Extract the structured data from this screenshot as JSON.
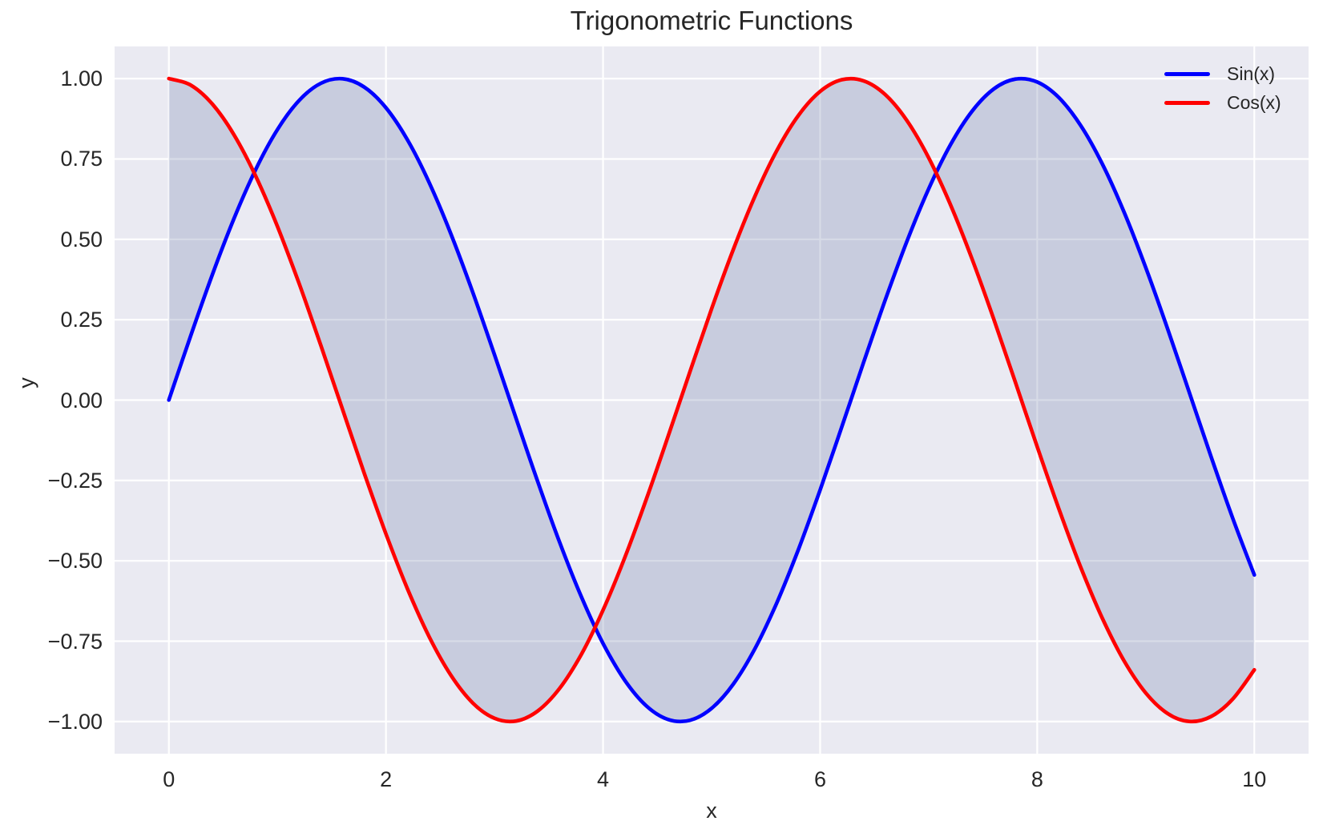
{
  "title": "Trigonometric Functions",
  "xlabel": "x",
  "ylabel": "y",
  "style": {
    "background": "#ffffff",
    "axes_background": "#eaeaf2",
    "grid_color": "#ffffff",
    "text_color": "#262626"
  },
  "legend": {
    "position": "upper right",
    "items": [
      {
        "label": "Sin(x)",
        "color": "#0000ff"
      },
      {
        "label": "Cos(x)",
        "color": "#ff0000"
      }
    ]
  },
  "chart_data": {
    "type": "line",
    "title": "Trigonometric Functions",
    "xlabel": "x",
    "ylabel": "y",
    "xlim": [
      -0.5,
      10.5
    ],
    "ylim": [
      -1.1,
      1.1
    ],
    "grid": true,
    "legend_position": "upper right",
    "xticks": {
      "values": [
        0,
        2,
        4,
        6,
        8,
        10
      ],
      "labels": [
        "0",
        "2",
        "4",
        "6",
        "8",
        "10"
      ]
    },
    "yticks": {
      "values": [
        -1.0,
        -0.75,
        -0.5,
        -0.25,
        0.0,
        0.25,
        0.5,
        0.75,
        1.0
      ],
      "labels": [
        "−1.00",
        "−0.75",
        "−0.50",
        "−0.25",
        "0.00",
        "0.25",
        "0.50",
        "0.75",
        "1.00"
      ]
    },
    "x": [
      0.0,
      0.2,
      0.4,
      0.6,
      0.8,
      1.0,
      1.2,
      1.4,
      1.6,
      1.8,
      2.0,
      2.2,
      2.4,
      2.6,
      2.8,
      3.0,
      3.2,
      3.4,
      3.6,
      3.8,
      4.0,
      4.2,
      4.4,
      4.6,
      4.8,
      5.0,
      5.2,
      5.4,
      5.6,
      5.8,
      6.0,
      6.2,
      6.4,
      6.6,
      6.8,
      7.0,
      7.2,
      7.4,
      7.6,
      7.8,
      8.0,
      8.2,
      8.4,
      8.6,
      8.8,
      9.0,
      9.2,
      9.4,
      9.6,
      9.8,
      10.0
    ],
    "series": [
      {
        "name": "Sin(x)",
        "color": "#0000ff",
        "linewidth": 4.6,
        "values": [
          0.0,
          0.1987,
          0.3894,
          0.5646,
          0.7174,
          0.8415,
          0.932,
          0.9854,
          0.9996,
          0.9738,
          0.9093,
          0.8085,
          0.6755,
          0.5155,
          0.335,
          0.1411,
          -0.0584,
          -0.2555,
          -0.4425,
          -0.6119,
          -0.7568,
          -0.8716,
          -0.9516,
          -0.9937,
          -0.9962,
          -0.9589,
          -0.8835,
          -0.7728,
          -0.6313,
          -0.4646,
          -0.2794,
          -0.0831,
          0.1165,
          0.3115,
          0.4941,
          0.657,
          0.7937,
          0.8987,
          0.9679,
          0.9985,
          0.9894,
          0.9407,
          0.8546,
          0.7344,
          0.5849,
          0.4121,
          0.2229,
          0.0248,
          -0.1743,
          -0.3665,
          -0.544
        ]
      },
      {
        "name": "Cos(x)",
        "color": "#ff0000",
        "linewidth": 4.6,
        "values": [
          1.0,
          0.9801,
          0.9211,
          0.8253,
          0.6967,
          0.5403,
          0.3624,
          0.17,
          -0.0292,
          -0.2272,
          -0.4161,
          -0.5885,
          -0.7374,
          -0.8569,
          -0.9422,
          -0.99,
          -0.9983,
          -0.9668,
          -0.8968,
          -0.791,
          -0.6536,
          -0.4903,
          -0.3073,
          -0.1122,
          0.0875,
          0.2837,
          0.4685,
          0.6347,
          0.7756,
          0.8855,
          0.9602,
          0.9965,
          0.9932,
          0.9502,
          0.8694,
          0.7539,
          0.6084,
          0.4385,
          0.2513,
          0.054,
          -0.1455,
          -0.3392,
          -0.5193,
          -0.6787,
          -0.8111,
          -0.9111,
          -0.9748,
          -0.9997,
          -0.9847,
          -0.9304,
          -0.8391
        ]
      }
    ],
    "fill_between": {
      "between": [
        "Sin(x)",
        "Cos(x)"
      ],
      "color": "#7b89af",
      "opacity": 0.3
    }
  }
}
